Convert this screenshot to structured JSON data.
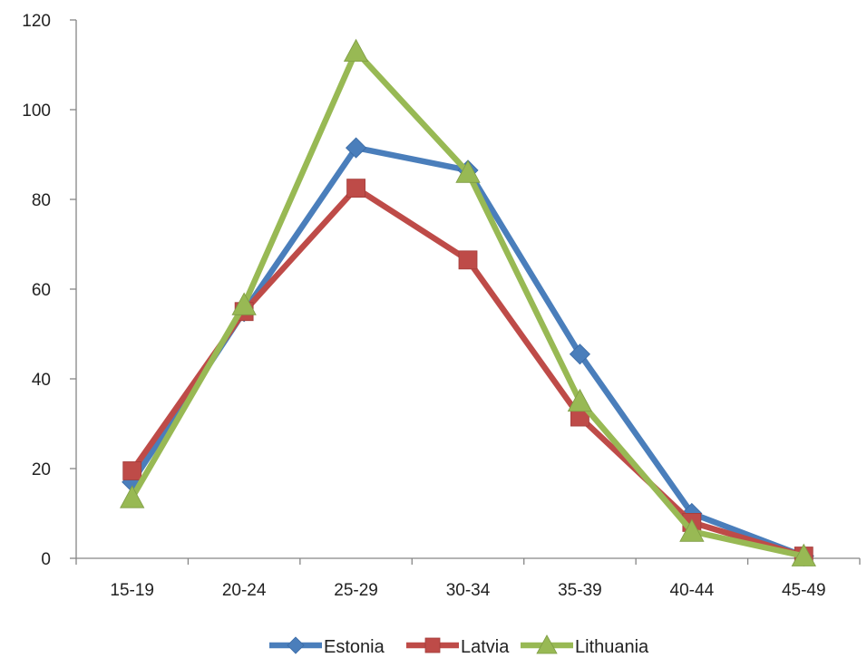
{
  "chart_data": {
    "type": "line",
    "title": "",
    "xlabel": "",
    "ylabel": "",
    "categories": [
      "15-19",
      "20-24",
      "25-29",
      "30-34",
      "35-39",
      "40-44",
      "45-49"
    ],
    "ylim": [
      0,
      120
    ],
    "yticks": [
      "0",
      "20",
      "40",
      "60",
      "80",
      "100",
      "120"
    ],
    "grid": false,
    "legend_position": "bottom",
    "series": [
      {
        "name": "Estonia",
        "color": "#4a7ebb",
        "marker": "diamond",
        "values": [
          17,
          55,
          91.5,
          86.5,
          45.5,
          10,
          0.5
        ]
      },
      {
        "name": "Latvia",
        "color": "#be4b48",
        "marker": "square",
        "values": [
          19.5,
          55,
          82.5,
          66.5,
          31.5,
          8,
          0.5
        ]
      },
      {
        "name": "Lithuania",
        "color": "#98b954",
        "marker": "triangle",
        "values": [
          13.5,
          56.5,
          113,
          86,
          35,
          6,
          0.5
        ]
      }
    ]
  }
}
